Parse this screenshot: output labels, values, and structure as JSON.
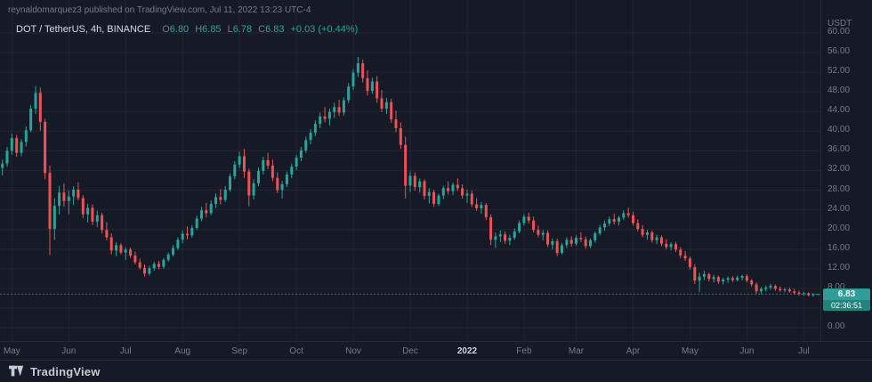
{
  "header": {
    "attribution": "reynaldomarquez3 published on TradingView.com, Jul 11, 2022 13:23 UTC-4"
  },
  "legend": {
    "symbol": "DOT / TetherUS, 4h, BINANCE",
    "ohlc": [
      {
        "label": "O",
        "value": "6.80"
      },
      {
        "label": "H",
        "value": "6.85"
      },
      {
        "label": "L",
        "value": "6.78"
      },
      {
        "label": "C",
        "value": "6.83"
      }
    ],
    "change": "+0.03 (+0.44%)"
  },
  "price_axis": {
    "unit": "USDT",
    "last_price": "6.83",
    "countdown": "02:36:51"
  },
  "footer": {
    "brand": "TradingView"
  },
  "colors": {
    "up": "#26a69a",
    "down": "#ef5350",
    "badge": "#2f9e98",
    "text_muted": "#787b86",
    "text_bright": "#d1d4dc",
    "background": "#151a26"
  },
  "chart_data": {
    "type": "candlestick",
    "title": "DOT / TetherUS, 4h, BINANCE",
    "symbol": "DOT/USDT",
    "exchange": "BINANCE",
    "interval": "4h",
    "ylabel": "USDT",
    "ylim": [
      0,
      60
    ],
    "y_step": 4,
    "y_ticks": [
      60,
      56,
      52,
      48,
      44,
      40,
      36,
      32,
      28,
      24,
      20,
      16,
      12,
      8,
      0
    ],
    "last_close": 6.83,
    "x_ticks": [
      {
        "label": "May",
        "i": 2
      },
      {
        "label": "Jun",
        "i": 14
      },
      {
        "label": "Jul",
        "i": 26
      },
      {
        "label": "Aug",
        "i": 38
      },
      {
        "label": "Sep",
        "i": 50
      },
      {
        "label": "Oct",
        "i": 62
      },
      {
        "label": "Nov",
        "i": 74
      },
      {
        "label": "Dec",
        "i": 86
      },
      {
        "label": "2022",
        "i": 98,
        "major": true
      },
      {
        "label": "Feb",
        "i": 110
      },
      {
        "label": "Mar",
        "i": 121
      },
      {
        "label": "Apr",
        "i": 133
      },
      {
        "label": "May",
        "i": 145
      },
      {
        "label": "Jun",
        "i": 157
      },
      {
        "label": "Jul",
        "i": 169
      }
    ],
    "candles": [
      [
        32.5,
        34.2,
        31.0,
        33.4
      ],
      [
        33.4,
        36.8,
        32.8,
        36.0
      ],
      [
        36.0,
        39.5,
        35.2,
        38.6
      ],
      [
        38.6,
        39.2,
        34.8,
        35.6
      ],
      [
        35.6,
        38.4,
        34.9,
        37.8
      ],
      [
        37.8,
        41.0,
        36.9,
        40.2
      ],
      [
        40.2,
        45.3,
        39.8,
        44.6
      ],
      [
        44.6,
        49.2,
        43.5,
        47.8
      ],
      [
        47.8,
        48.9,
        40.1,
        41.9
      ],
      [
        41.9,
        42.5,
        30.2,
        31.5
      ],
      [
        31.5,
        33.0,
        14.8,
        20.1
      ],
      [
        20.1,
        26.4,
        17.9,
        24.8
      ],
      [
        24.8,
        28.9,
        23.0,
        27.5
      ],
      [
        27.5,
        29.4,
        24.6,
        25.8
      ],
      [
        25.8,
        27.9,
        23.1,
        26.7
      ],
      [
        26.7,
        28.8,
        25.0,
        28.1
      ],
      [
        28.1,
        29.6,
        25.9,
        26.4
      ],
      [
        26.4,
        27.0,
        22.3,
        23.1
      ],
      [
        23.1,
        25.2,
        21.4,
        24.4
      ],
      [
        24.4,
        25.1,
        20.9,
        21.6
      ],
      [
        21.6,
        23.8,
        20.5,
        22.9
      ],
      [
        22.9,
        23.4,
        19.2,
        19.9
      ],
      [
        19.9,
        21.5,
        17.8,
        18.4
      ],
      [
        18.4,
        19.2,
        14.9,
        15.7
      ],
      [
        15.7,
        17.4,
        14.6,
        16.8
      ],
      [
        16.8,
        17.2,
        14.9,
        15.3
      ],
      [
        15.3,
        16.4,
        13.8,
        15.9
      ],
      [
        15.9,
        16.3,
        14.2,
        14.7
      ],
      [
        14.7,
        15.5,
        12.9,
        13.3
      ],
      [
        13.3,
        14.1,
        11.8,
        12.2
      ],
      [
        12.2,
        12.9,
        10.4,
        11.0
      ],
      [
        11.0,
        12.6,
        10.6,
        12.1
      ],
      [
        12.1,
        13.4,
        11.6,
        13.0
      ],
      [
        13.0,
        13.6,
        11.9,
        12.4
      ],
      [
        12.4,
        14.2,
        12.0,
        13.8
      ],
      [
        13.8,
        15.3,
        13.4,
        14.9
      ],
      [
        14.9,
        16.8,
        14.5,
        16.2
      ],
      [
        16.2,
        18.4,
        15.8,
        17.9
      ],
      [
        17.9,
        19.8,
        17.2,
        19.1
      ],
      [
        19.1,
        20.6,
        18.0,
        18.8
      ],
      [
        18.8,
        20.9,
        18.3,
        20.3
      ],
      [
        20.3,
        22.8,
        19.9,
        22.2
      ],
      [
        22.2,
        24.6,
        21.7,
        23.9
      ],
      [
        23.9,
        25.4,
        22.5,
        23.3
      ],
      [
        23.3,
        25.9,
        22.9,
        25.2
      ],
      [
        25.2,
        27.3,
        24.4,
        26.6
      ],
      [
        26.6,
        28.2,
        25.1,
        26.0
      ],
      [
        26.0,
        28.8,
        25.6,
        28.1
      ],
      [
        28.1,
        31.4,
        27.7,
        30.8
      ],
      [
        30.8,
        33.9,
        30.2,
        33.2
      ],
      [
        33.2,
        35.8,
        32.5,
        34.9
      ],
      [
        34.9,
        36.4,
        30.5,
        31.8
      ],
      [
        31.8,
        32.4,
        24.7,
        26.9
      ],
      [
        26.9,
        30.2,
        26.1,
        29.4
      ],
      [
        29.4,
        32.6,
        28.8,
        31.9
      ],
      [
        31.9,
        34.8,
        31.2,
        34.1
      ],
      [
        34.1,
        35.6,
        32.3,
        33.0
      ],
      [
        33.0,
        34.2,
        29.8,
        30.5
      ],
      [
        30.5,
        31.6,
        27.4,
        28.0
      ],
      [
        28.0,
        29.9,
        26.3,
        29.2
      ],
      [
        29.2,
        31.8,
        28.6,
        31.2
      ],
      [
        31.2,
        33.4,
        30.4,
        32.8
      ],
      [
        32.8,
        35.2,
        32.1,
        34.6
      ],
      [
        34.6,
        36.8,
        33.9,
        36.1
      ],
      [
        36.1,
        38.9,
        35.6,
        38.2
      ],
      [
        38.2,
        40.4,
        37.3,
        39.7
      ],
      [
        39.7,
        42.2,
        39.0,
        41.5
      ],
      [
        41.5,
        43.8,
        40.6,
        43.0
      ],
      [
        43.0,
        44.9,
        41.8,
        42.5
      ],
      [
        42.5,
        44.6,
        41.2,
        43.9
      ],
      [
        43.9,
        45.8,
        42.7,
        44.9
      ],
      [
        44.9,
        46.4,
        43.1,
        43.8
      ],
      [
        43.8,
        46.9,
        43.2,
        46.3
      ],
      [
        46.3,
        49.8,
        45.7,
        49.1
      ],
      [
        49.1,
        52.6,
        48.4,
        51.9
      ],
      [
        51.9,
        55.1,
        51.0,
        53.8
      ],
      [
        53.8,
        54.6,
        49.9,
        50.8
      ],
      [
        50.8,
        52.4,
        47.3,
        48.2
      ],
      [
        48.2,
        50.9,
        47.6,
        50.1
      ],
      [
        50.1,
        51.2,
        45.8,
        46.7
      ],
      [
        46.7,
        48.4,
        43.9,
        44.6
      ],
      [
        44.6,
        46.8,
        43.5,
        45.9
      ],
      [
        45.9,
        46.6,
        41.7,
        42.4
      ],
      [
        42.4,
        44.2,
        39.8,
        40.6
      ],
      [
        40.6,
        41.8,
        36.4,
        37.2
      ],
      [
        37.2,
        38.9,
        26.3,
        28.9
      ],
      [
        28.9,
        31.8,
        27.6,
        30.9
      ],
      [
        30.9,
        31.6,
        27.9,
        28.6
      ],
      [
        28.6,
        30.4,
        27.5,
        29.8
      ],
      [
        29.8,
        30.2,
        26.1,
        26.8
      ],
      [
        26.8,
        28.4,
        25.3,
        27.6
      ],
      [
        27.6,
        28.1,
        24.6,
        25.2
      ],
      [
        25.2,
        27.3,
        24.8,
        26.9
      ],
      [
        26.9,
        28.9,
        26.2,
        28.4
      ],
      [
        28.4,
        29.8,
        27.1,
        27.8
      ],
      [
        27.8,
        29.6,
        27.0,
        29.1
      ],
      [
        29.1,
        30.4,
        27.8,
        28.4
      ],
      [
        28.4,
        29.2,
        26.3,
        26.9
      ],
      [
        26.9,
        28.1,
        25.4,
        27.3
      ],
      [
        27.3,
        27.9,
        24.6,
        25.1
      ],
      [
        25.1,
        26.4,
        23.8,
        24.3
      ],
      [
        24.3,
        25.6,
        23.2,
        25.0
      ],
      [
        25.0,
        25.4,
        21.9,
        22.5
      ],
      [
        22.5,
        23.1,
        16.8,
        17.9
      ],
      [
        17.9,
        19.4,
        16.2,
        18.6
      ],
      [
        18.6,
        19.8,
        17.4,
        19.0
      ],
      [
        19.0,
        19.6,
        17.1,
        17.7
      ],
      [
        17.7,
        18.9,
        16.8,
        18.3
      ],
      [
        18.3,
        20.2,
        17.9,
        19.6
      ],
      [
        19.6,
        21.8,
        19.2,
        21.3
      ],
      [
        21.3,
        23.1,
        20.8,
        22.6
      ],
      [
        22.6,
        23.4,
        21.2,
        21.8
      ],
      [
        21.8,
        22.6,
        19.4,
        19.9
      ],
      [
        19.9,
        20.8,
        18.4,
        18.9
      ],
      [
        18.9,
        19.9,
        17.8,
        19.3
      ],
      [
        19.3,
        19.8,
        16.4,
        16.9
      ],
      [
        16.9,
        18.2,
        15.9,
        17.6
      ],
      [
        17.6,
        18.1,
        14.6,
        15.2
      ],
      [
        15.2,
        17.3,
        14.9,
        16.8
      ],
      [
        16.8,
        18.4,
        16.2,
        17.9
      ],
      [
        17.9,
        18.6,
        16.5,
        17.1
      ],
      [
        17.1,
        18.8,
        16.7,
        18.3
      ],
      [
        18.3,
        19.4,
        17.4,
        18.0
      ],
      [
        18.0,
        18.6,
        16.1,
        16.6
      ],
      [
        16.6,
        18.2,
        16.2,
        17.8
      ],
      [
        17.8,
        19.6,
        17.3,
        19.2
      ],
      [
        19.2,
        20.9,
        18.8,
        20.4
      ],
      [
        20.4,
        21.8,
        19.7,
        21.2
      ],
      [
        21.2,
        22.6,
        20.6,
        22.1
      ],
      [
        22.1,
        23.2,
        21.0,
        21.6
      ],
      [
        21.6,
        22.8,
        20.8,
        22.4
      ],
      [
        22.4,
        23.9,
        21.9,
        23.3
      ],
      [
        23.3,
        24.4,
        22.4,
        22.9
      ],
      [
        22.9,
        23.6,
        20.8,
        21.3
      ],
      [
        21.3,
        22.1,
        19.6,
        20.1
      ],
      [
        20.1,
        20.9,
        18.4,
        18.9
      ],
      [
        18.9,
        19.9,
        17.9,
        19.4
      ],
      [
        19.4,
        19.8,
        17.3,
        17.8
      ],
      [
        17.8,
        18.9,
        17.0,
        18.4
      ],
      [
        18.4,
        18.8,
        16.6,
        17.1
      ],
      [
        17.1,
        18.0,
        15.9,
        16.4
      ],
      [
        16.4,
        17.4,
        15.7,
        17.0
      ],
      [
        17.0,
        17.5,
        15.4,
        15.9
      ],
      [
        15.9,
        16.4,
        14.2,
        14.7
      ],
      [
        14.7,
        15.6,
        13.6,
        14.1
      ],
      [
        14.1,
        14.5,
        11.8,
        12.3
      ],
      [
        12.3,
        12.9,
        8.9,
        9.6
      ],
      [
        9.6,
        11.2,
        7.3,
        10.4
      ],
      [
        10.4,
        11.6,
        9.7,
        10.9
      ],
      [
        10.9,
        11.2,
        9.4,
        9.9
      ],
      [
        9.9,
        10.8,
        9.2,
        10.3
      ],
      [
        10.3,
        10.6,
        8.9,
        9.4
      ],
      [
        9.4,
        10.2,
        8.8,
        9.8
      ],
      [
        9.8,
        10.4,
        9.1,
        10.1
      ],
      [
        10.1,
        10.5,
        9.3,
        9.7
      ],
      [
        9.7,
        10.6,
        9.4,
        10.2
      ],
      [
        10.2,
        10.8,
        9.6,
        10.5
      ],
      [
        10.5,
        10.9,
        9.2,
        9.6
      ],
      [
        9.6,
        9.9,
        8.4,
        8.8
      ],
      [
        8.8,
        9.2,
        6.9,
        7.4
      ],
      [
        7.4,
        8.3,
        6.8,
        7.9
      ],
      [
        7.9,
        8.6,
        7.4,
        8.2
      ],
      [
        8.2,
        8.9,
        7.7,
        8.5
      ],
      [
        8.5,
        8.8,
        7.5,
        7.9
      ],
      [
        7.9,
        8.4,
        7.3,
        7.6
      ],
      [
        7.6,
        8.1,
        7.2,
        7.8
      ],
      [
        7.8,
        8.2,
        7.1,
        7.4
      ],
      [
        7.4,
        7.9,
        6.8,
        7.1
      ],
      [
        7.1,
        7.5,
        6.6,
        6.9
      ],
      [
        6.9,
        7.3,
        6.5,
        7.0
      ],
      [
        7.0,
        7.2,
        6.4,
        6.6
      ],
      [
        6.6,
        7.0,
        6.3,
        6.8
      ],
      [
        6.8,
        6.85,
        6.78,
        6.83
      ]
    ]
  }
}
